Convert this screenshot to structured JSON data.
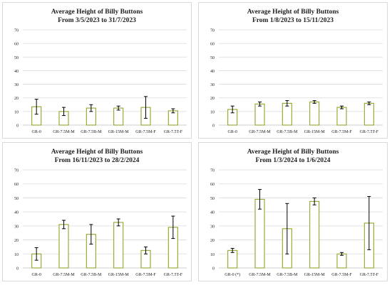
{
  "style": {
    "bar_edge": "#8fa528",
    "bar_fill": "#ffffff",
    "grid": "#d9d9d9",
    "error_bar": "#000000",
    "text": "#222222"
  },
  "chart_data": [
    {
      "type": "bar",
      "title": "Average Height of Billy Buttons",
      "subtitle": "From 3/5/2023 to 31/7/2023",
      "categories": [
        "GR-0",
        "GR-7.5M-M",
        "GR-7.5B-M",
        "GR-15M-M",
        "GR-7.5M-F",
        "GR-7.5T-F"
      ],
      "values": [
        13.5,
        10,
        12.5,
        12.5,
        13,
        10.5
      ],
      "errors": [
        5.5,
        3,
        2.5,
        1.5,
        8,
        1.5
      ],
      "yticks": [
        "0",
        "10",
        "20",
        "30",
        "40",
        "50",
        "60",
        "70"
      ],
      "ylim": [
        0,
        70
      ],
      "grid": true
    },
    {
      "type": "bar",
      "title": "Average Height of Billy Buttons",
      "subtitle": "From 1/8/2023 to 15/11/2023",
      "categories": [
        "GR-0",
        "GR-7.5M-M",
        "GR-7.5B-M",
        "GR-15M-M",
        "GR-7.5M-F",
        "GR-7.5T-F"
      ],
      "values": [
        11.5,
        15.5,
        16,
        17,
        13,
        16
      ],
      "errors": [
        2.5,
        1.5,
        2,
        1,
        1,
        1
      ],
      "yticks": [
        "0",
        "10",
        "20",
        "30",
        "40",
        "50",
        "60",
        "70"
      ],
      "ylim": [
        0,
        70
      ],
      "grid": true
    },
    {
      "type": "bar",
      "title": "Average Height of Billy Buttons",
      "subtitle": "From 16/11/2023 to 28/2/2024",
      "categories": [
        "GR-0",
        "GR-7.5M-M",
        "GR-7.5B-M",
        "GR-15M-M",
        "GR-7.5M-F",
        "GR-7.5T-F"
      ],
      "values": [
        10,
        31,
        24,
        32.5,
        12.5,
        29
      ],
      "errors": [
        4.5,
        3,
        7,
        2.5,
        2.5,
        8
      ],
      "yticks": [
        "0",
        "10",
        "20",
        "30",
        "40",
        "50",
        "60",
        "70"
      ],
      "ylim": [
        0,
        70
      ],
      "grid": true
    },
    {
      "type": "bar",
      "title": "Average Height of Billy Buttons",
      "subtitle": "From 1/3/2024 to 1/6/2024",
      "categories": [
        "GR-0 (*)",
        "GR-7.5M-M",
        "GR-7.5B-M",
        "GR-15M-M",
        "GR-7.5M-F",
        "GR-7.5T-F"
      ],
      "values": [
        12.5,
        49,
        28,
        47.5,
        10,
        32
      ],
      "errors": [
        1.5,
        7,
        18,
        2.5,
        1,
        19
      ],
      "yticks": [
        "0",
        "10",
        "20",
        "30",
        "40",
        "50",
        "60",
        "70"
      ],
      "ylim": [
        0,
        70
      ],
      "grid": true
    }
  ]
}
